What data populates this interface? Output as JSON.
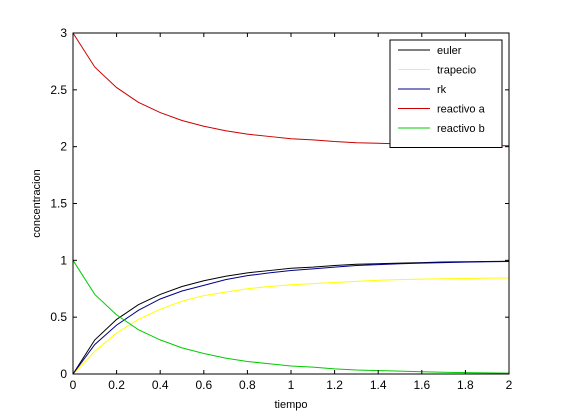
{
  "chart_data": {
    "type": "line",
    "title": "",
    "xlabel": "tiempo",
    "ylabel": "concentracion",
    "xlim": [
      0,
      2
    ],
    "ylim": [
      0,
      3
    ],
    "xticks": [
      0,
      0.2,
      0.4,
      0.6,
      0.8,
      1,
      1.2,
      1.4,
      1.6,
      1.8,
      2
    ],
    "xtick_labels": [
      "0",
      "0.2",
      "0.4",
      "0.6",
      "0.8",
      "1",
      "1.2",
      "1.4",
      "1.6",
      "1.8",
      "2"
    ],
    "yticks": [
      0,
      0.5,
      1,
      1.5,
      2,
      2.5,
      3
    ],
    "ytick_labels": [
      "0",
      "0.5",
      "1",
      "1.5",
      "2",
      "2.5",
      "3"
    ],
    "grid": false,
    "legend_position": "top-right",
    "x": [
      0,
      0.1,
      0.2,
      0.3,
      0.4,
      0.5,
      0.6,
      0.7,
      0.8,
      0.9,
      1.0,
      1.1,
      1.2,
      1.3,
      1.4,
      1.5,
      1.6,
      1.7,
      1.8,
      1.9,
      2.0
    ],
    "series": [
      {
        "name": "euler",
        "color": "#000000",
        "values": [
          0,
          0.3,
          0.48,
          0.61,
          0.7,
          0.77,
          0.82,
          0.86,
          0.89,
          0.91,
          0.93,
          0.94,
          0.955,
          0.965,
          0.97,
          0.975,
          0.98,
          0.985,
          0.988,
          0.99,
          0.992
        ]
      },
      {
        "name": "trapecio",
        "color": "#ffff00",
        "values": [
          0,
          0.2,
          0.36,
          0.48,
          0.57,
          0.64,
          0.69,
          0.72,
          0.75,
          0.77,
          0.785,
          0.795,
          0.805,
          0.815,
          0.825,
          0.83,
          0.835,
          0.838,
          0.84,
          0.843,
          0.845
        ]
      },
      {
        "name": "rk",
        "color": "#00008b",
        "values": [
          0,
          0.26,
          0.43,
          0.56,
          0.66,
          0.73,
          0.78,
          0.83,
          0.865,
          0.89,
          0.91,
          0.925,
          0.94,
          0.955,
          0.962,
          0.97,
          0.975,
          0.98,
          0.984,
          0.987,
          0.99
        ]
      },
      {
        "name": "reactivo a",
        "color": "#cc0000",
        "values": [
          3.0,
          2.7,
          2.52,
          2.39,
          2.3,
          2.23,
          2.18,
          2.14,
          2.11,
          2.09,
          2.07,
          2.06,
          2.045,
          2.035,
          2.03,
          2.025,
          2.02,
          2.015,
          2.012,
          2.01,
          2.008
        ]
      },
      {
        "name": "reactivo b",
        "color": "#00cc00",
        "values": [
          1.0,
          0.7,
          0.52,
          0.39,
          0.3,
          0.23,
          0.18,
          0.14,
          0.11,
          0.09,
          0.07,
          0.06,
          0.045,
          0.035,
          0.03,
          0.025,
          0.02,
          0.015,
          0.012,
          0.01,
          0.008
        ]
      }
    ]
  }
}
